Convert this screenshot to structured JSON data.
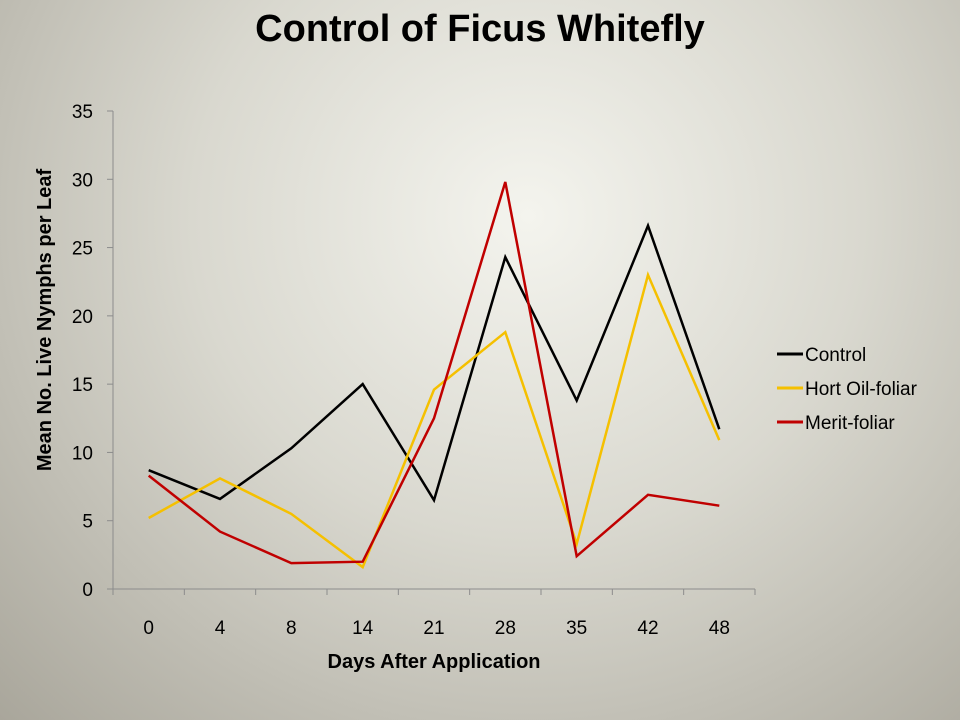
{
  "chart_data": {
    "type": "line",
    "title": "Control of Ficus Whitefly",
    "xlabel": "Days After Application",
    "ylabel": "Mean No. Live Nymphs per Leaf",
    "categories": [
      "0",
      "4",
      "8",
      "14",
      "21",
      "28",
      "35",
      "42",
      "48"
    ],
    "ylim": [
      0,
      35
    ],
    "yticks": [
      "0",
      "5",
      "10",
      "15",
      "20",
      "25",
      "30",
      "35"
    ],
    "grid": false,
    "legend_position": "right",
    "series": [
      {
        "name": "Control",
        "color": "#000000",
        "values": [
          8.7,
          6.6,
          10.3,
          15.0,
          6.5,
          24.3,
          13.8,
          26.6,
          11.7
        ]
      },
      {
        "name": "Hort Oil-foliar",
        "color": "#f5c000",
        "values": [
          5.2,
          8.1,
          5.5,
          1.6,
          14.6,
          18.8,
          3.3,
          23.0,
          10.9
        ]
      },
      {
        "name": "Merit-foliar",
        "color": "#c00000",
        "values": [
          8.3,
          4.2,
          1.9,
          2.0,
          12.5,
          29.8,
          2.4,
          6.9,
          6.1
        ]
      }
    ]
  }
}
